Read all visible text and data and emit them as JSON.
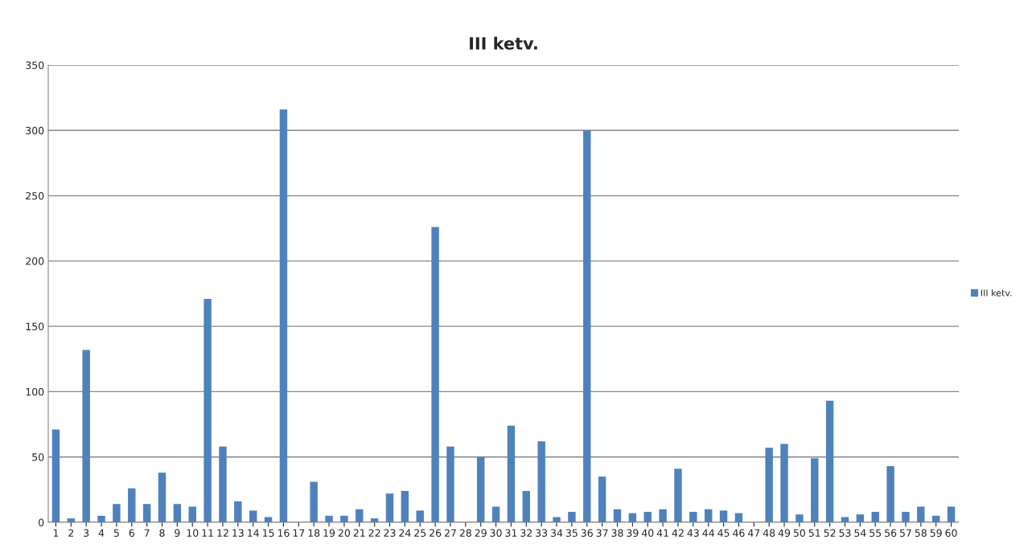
{
  "chart_data": {
    "type": "bar",
    "title": "III ketv.",
    "categories": [
      "1",
      "2",
      "3",
      "4",
      "5",
      "6",
      "7",
      "8",
      "9",
      "10",
      "11",
      "12",
      "13",
      "14",
      "15",
      "16",
      "17",
      "18",
      "19",
      "20",
      "21",
      "22",
      "23",
      "24",
      "25",
      "26",
      "27",
      "28",
      "29",
      "30",
      "31",
      "32",
      "33",
      "34",
      "35",
      "36",
      "37",
      "38",
      "39",
      "40",
      "41",
      "42",
      "43",
      "44",
      "45",
      "46",
      "47",
      "48",
      "49",
      "50",
      "51",
      "52",
      "53",
      "54",
      "55",
      "56",
      "57",
      "58",
      "59",
      "60"
    ],
    "series": [
      {
        "name": "III ketv.",
        "color": "#4f81bd",
        "values": [
          71,
          3,
          132,
          5,
          14,
          26,
          14,
          38,
          14,
          12,
          171,
          58,
          16,
          9,
          4,
          316,
          0,
          31,
          5,
          5,
          10,
          3,
          22,
          24,
          9,
          226,
          58,
          0,
          50,
          12,
          74,
          24,
          62,
          4,
          8,
          300,
          35,
          10,
          7,
          8,
          10,
          41,
          8,
          10,
          9,
          7,
          0,
          57,
          60,
          6,
          49,
          93,
          4,
          6,
          8,
          43,
          8,
          12,
          5,
          12
        ]
      }
    ],
    "ylim": [
      0,
      350
    ],
    "yticks": [
      0,
      50,
      100,
      150,
      200,
      250,
      300,
      350
    ],
    "grid": "y",
    "legend": "right"
  }
}
